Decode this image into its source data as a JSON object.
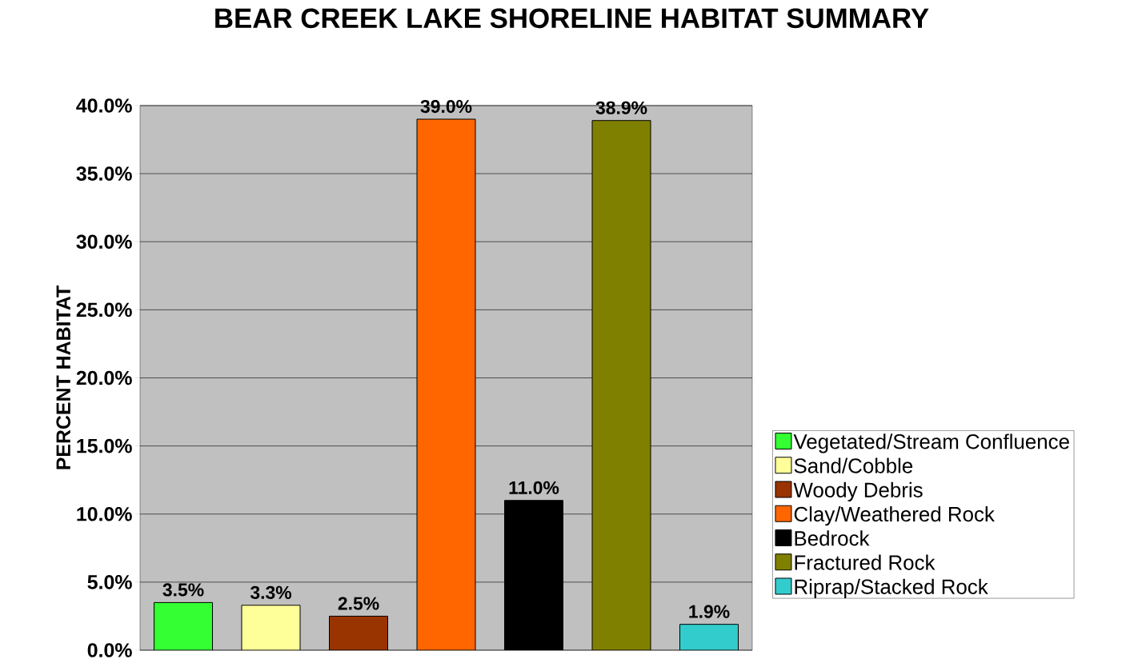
{
  "chart_data": {
    "type": "bar",
    "title": "BEAR CREEK LAKE SHORELINE HABITAT SUMMARY",
    "ylabel": "PERCENT HABITAT",
    "categories": [
      null
    ],
    "series": [
      {
        "name": "Vegetated/Stream Confluence",
        "color": "#33ff33",
        "values": [
          3.5
        ],
        "value_labels": [
          "3.5%"
        ]
      },
      {
        "name": "Sand/Cobble",
        "color": "#ffff99",
        "values": [
          3.3
        ],
        "value_labels": [
          "3.3%"
        ]
      },
      {
        "name": "Woody Debris",
        "color": "#993300",
        "values": [
          2.5
        ],
        "value_labels": [
          "2.5%"
        ]
      },
      {
        "name": "Clay/Weathered Rock",
        "color": "#ff6600",
        "values": [
          39.0
        ],
        "value_labels": [
          "39.0%"
        ]
      },
      {
        "name": "Bedrock",
        "color": "#000000",
        "values": [
          11.0
        ],
        "value_labels": [
          "11.0%"
        ]
      },
      {
        "name": "Fractured Rock",
        "color": "#808000",
        "values": [
          38.9
        ],
        "value_labels": [
          "38.9%"
        ]
      },
      {
        "name": "Riprap/Stacked Rock",
        "color": "#33cccc",
        "values": [
          1.9
        ],
        "value_labels": [
          "1.9%"
        ]
      }
    ],
    "ylim": [
      0,
      40
    ],
    "yticks": [
      {
        "value": 0,
        "label": "0.0%"
      },
      {
        "value": 5,
        "label": "5.0%"
      },
      {
        "value": 10,
        "label": "10.0%"
      },
      {
        "value": 15,
        "label": "15.0%"
      },
      {
        "value": 20,
        "label": "20.0%"
      },
      {
        "value": 25,
        "label": "25.0%"
      },
      {
        "value": 30,
        "label": "30.0%"
      },
      {
        "value": 35,
        "label": "35.0%"
      },
      {
        "value": 40,
        "label": "40.0%"
      }
    ],
    "grid": "y",
    "legend": "right"
  }
}
